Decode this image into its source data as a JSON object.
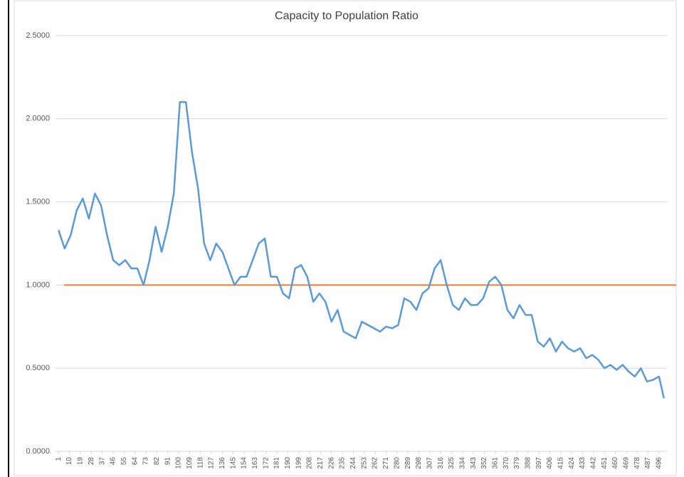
{
  "chart_data": {
    "type": "line",
    "title": "Capacity to Population Ratio",
    "x": [
      1,
      6,
      11,
      16,
      21,
      26,
      31,
      36,
      41,
      46,
      51,
      56,
      61,
      66,
      71,
      76,
      81,
      86,
      91,
      96,
      101,
      106,
      111,
      116,
      121,
      126,
      131,
      136,
      141,
      146,
      151,
      156,
      161,
      166,
      171,
      176,
      181,
      186,
      191,
      196,
      201,
      206,
      211,
      216,
      221,
      226,
      231,
      236,
      241,
      246,
      251,
      256,
      261,
      266,
      271,
      276,
      281,
      286,
      291,
      296,
      301,
      306,
      311,
      316,
      321,
      326,
      331,
      336,
      341,
      346,
      351,
      356,
      361,
      366,
      371,
      376,
      381,
      386,
      391,
      396,
      401,
      406,
      411,
      416,
      421,
      426,
      431,
      436,
      441,
      446,
      451,
      456,
      461,
      466,
      471,
      476,
      481,
      486,
      491,
      496,
      500
    ],
    "series": [
      {
        "name": "Capacity to Population Ratio",
        "color": "#5b9bd5",
        "values": [
          1.33,
          1.22,
          1.3,
          1.45,
          1.52,
          1.4,
          1.55,
          1.48,
          1.3,
          1.15,
          1.12,
          1.15,
          1.1,
          1.1,
          1.0,
          1.15,
          1.35,
          1.2,
          1.35,
          1.55,
          2.1,
          2.1,
          1.8,
          1.58,
          1.25,
          1.15,
          1.25,
          1.2,
          1.1,
          1.0,
          1.05,
          1.05,
          1.15,
          1.25,
          1.28,
          1.05,
          1.05,
          0.95,
          0.92,
          1.1,
          1.12,
          1.05,
          0.9,
          0.95,
          0.9,
          0.78,
          0.85,
          0.72,
          0.7,
          0.68,
          0.78,
          0.76,
          0.74,
          0.72,
          0.75,
          0.74,
          0.76,
          0.92,
          0.9,
          0.85,
          0.95,
          0.98,
          1.1,
          1.15,
          1.0,
          0.88,
          0.85,
          0.92,
          0.88,
          0.88,
          0.92,
          1.02,
          1.05,
          1.0,
          0.85,
          0.8,
          0.88,
          0.82,
          0.82,
          0.66,
          0.63,
          0.68,
          0.6,
          0.66,
          0.62,
          0.6,
          0.62,
          0.56,
          0.58,
          0.55,
          0.5,
          0.52,
          0.49,
          0.52,
          0.48,
          0.45,
          0.5,
          0.42,
          0.43,
          0.45,
          0.32
        ]
      }
    ],
    "hline": {
      "value": 1,
      "color": "#ed7d31"
    },
    "xlim": [
      -1.5,
      502.5
    ],
    "xticks": [
      1,
      10,
      19,
      28,
      37,
      46,
      55,
      64,
      73,
      82,
      91,
      100,
      109,
      118,
      127,
      136,
      145,
      154,
      163,
      172,
      181,
      190,
      199,
      208,
      217,
      226,
      235,
      244,
      253,
      262,
      271,
      280,
      289,
      298,
      307,
      316,
      325,
      334,
      343,
      352,
      361,
      370,
      379,
      388,
      397,
      406,
      415,
      424,
      433,
      442,
      451,
      460,
      469,
      478,
      487,
      496
    ],
    "ylim": [
      0,
      2.5
    ],
    "yticks": [
      {
        "value": 0,
        "label": "0.0000"
      },
      {
        "value": 0.5,
        "label": "0.5000"
      },
      {
        "value": 1,
        "label": "1.0000"
      },
      {
        "value": 1.5,
        "label": "1.5000"
      },
      {
        "value": 2,
        "label": "2.0000"
      },
      {
        "value": 2.5,
        "label": "2.5000"
      }
    ],
    "grid": true
  }
}
